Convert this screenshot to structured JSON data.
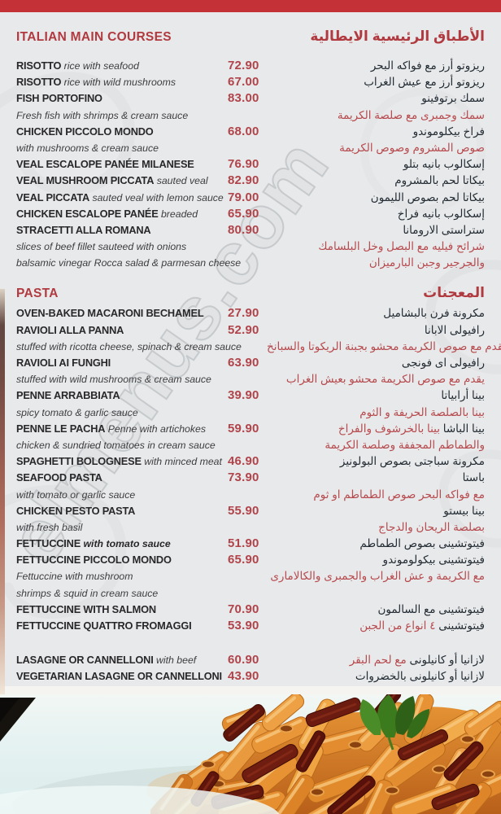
{
  "watermark": "elmenus.com",
  "colors": {
    "banner": "#c43238",
    "heading": "#b03a3f",
    "price": "#b0444a",
    "arabic_red": "#b64a4e"
  },
  "photo": {
    "description": "penne-pasta-with-sundried-tomatoes-photo"
  },
  "sections": [
    {
      "title_en": "ITALIAN MAIN COURSES",
      "title_ar": "الأطباق الرئيسية الايطالية",
      "rows": [
        {
          "t": "item",
          "b": "RISOTTO",
          "i": "rice with seafood",
          "price": "72.90",
          "arb": "ريزوتو أرز مع فواكه البحر"
        },
        {
          "t": "item",
          "b": "RISOTTO",
          "i": "rice with wild mushrooms",
          "price": "67.00",
          "arb": "ريزوتو أرز مع عيش الغراب"
        },
        {
          "t": "item",
          "b": "FISH PORTOFINO",
          "price": "83.00",
          "arb": "سمك برتوفينو"
        },
        {
          "t": "desc",
          "i": "Fresh fish with shrimps & cream sauce",
          "arr": "سمك وجمبرى مع صلصة الكريمة"
        },
        {
          "t": "item",
          "b": "CHICKEN PICCOLO MONDO",
          "price": "68.00",
          "arb": "فراخ بيكلوموندو"
        },
        {
          "t": "desc",
          "i": "with mushrooms & cream sauce",
          "arr": "صوص المشروم وصوص الكريمة"
        },
        {
          "t": "item",
          "b": "VEAL ESCALOPE PANÉE MILANESE",
          "price": "76.90",
          "arb": "إسكالوب بانيه بتلو"
        },
        {
          "t": "item",
          "b": "VEAL MUSHROOM PICCATA",
          "i": "sauted veal",
          "price": "82.90",
          "arb": "بيكاتا لحم بالمشروم"
        },
        {
          "t": "item",
          "b": "VEAL PICCATA",
          "i": "sauted veal with lemon sauce",
          "price": "79.00",
          "arb": "بيكاتا لحم بصوص الليمون"
        },
        {
          "t": "item",
          "b": "CHICKEN ESCALOPE PANÉE",
          "i": "breaded",
          "price": "65.90",
          "arb": "إسكالوب بانيه فراخ"
        },
        {
          "t": "item",
          "b": "STRACETTI ALLA ROMANA",
          "price": "80.90",
          "arb": "ستراستى الارومانا"
        },
        {
          "t": "desc",
          "i": "slices of beef fillet sauteed with onions",
          "arr": "شرائح فيليه مع البصل وخل البلسامك"
        },
        {
          "t": "desc",
          "i": "balsamic vinegar Rocca salad & parmesan cheese",
          "arr": "والجرجير وجبن البارميزان"
        }
      ]
    },
    {
      "title_en": "PASTA",
      "title_ar": "المعجنات",
      "rows": [
        {
          "t": "item",
          "b": "OVEN-BAKED MACARONI BECHAMEL",
          "price": "27.90",
          "arb": "مكرونة فرن بالبشاميل"
        },
        {
          "t": "item",
          "b": "RAVIOLI ALLA PANNA",
          "price": "52.90",
          "arb": "رافيولى الابانا"
        },
        {
          "t": "desc",
          "i": "stuffed with ricotta cheese, spinach & cream sauce",
          "arr": "يقدم مع صوص الكريمة محشو بجبنة الريكوتا والسبانخ"
        },
        {
          "t": "item",
          "b": "RAVIOLI AI FUNGHI",
          "price": "63.90",
          "arb": "رافيولى اى فونجى"
        },
        {
          "t": "desc",
          "i": "stuffed with wild mushrooms & cream sauce",
          "arr": "يقدم مع صوص الكريمة محشو بعيش الغراب"
        },
        {
          "t": "item",
          "b": "PENNE ARRABBIATA",
          "price": "39.90",
          "arb": "بينا أرابياتا"
        },
        {
          "t": "desc",
          "i": "spicy tomato & garlic sauce",
          "arr": "بينا بالصلصة الحريفة و الثوم"
        },
        {
          "t": "item",
          "b": "PENNE LE PACHA",
          "i": "Penne with artichokes",
          "price": "59.90",
          "arb": "بينا الباشا",
          "arr": "بينا بالخرشوف والفراخ"
        },
        {
          "t": "desc",
          "i": "chicken & sundried tomatoes in cream sauce",
          "arr": "والطماطم المجففة وصلصة الكريمة"
        },
        {
          "t": "item",
          "b": "SPAGHETTI BOLOGNESE",
          "i": "with minced meat",
          "price": "46.90",
          "arb": "مكرونة سباجتى بصوص البولونيز"
        },
        {
          "t": "item",
          "b": "SEAFOOD PASTA",
          "price": "73.90",
          "arb": "باستا"
        },
        {
          "t": "desc",
          "i": "with tomato or garlic sauce",
          "arr": "مع فواكه البحر صوص الطماطم او ثوم"
        },
        {
          "t": "item",
          "b": "CHICKEN PESTO PASTA",
          "price": "55.90",
          "arb": "بينا بيستو"
        },
        {
          "t": "desc",
          "i": "with fresh basil",
          "arr": "بصلصة الريحان والدجاج"
        },
        {
          "t": "item",
          "b": "FETTUCCINE",
          "i": "with tomato sauce",
          "ib": true,
          "price": "51.90",
          "arb": "فيتوتشينى بصوص الطماطم"
        },
        {
          "t": "item",
          "b": "FETTUCCINE PICCOLO MONDO",
          "price": "65.90",
          "arb": "فيتوتشينى بيكولوموندو"
        },
        {
          "t": "desc",
          "i": "Fettuccine with mushroom",
          "arr": "مع الكريمة و عش الغراب والجمبرى والكالامارى"
        },
        {
          "t": "desc",
          "i": " shrimps & squid in cream sauce"
        },
        {
          "t": "item",
          "b": "FETTUCCINE WITH SALMON",
          "price": "70.90",
          "arb": "فيتوتشينى مع السالمون"
        },
        {
          "t": "item",
          "b": "FETTUCCINE QUATTRO FROMAGGI",
          "price": "53.90",
          "arb": "فيتوتشينى",
          "arr": "٤ انواع من الجبن"
        },
        {
          "t": "gap"
        },
        {
          "t": "item",
          "b": "LASAGNE OR CANNELLONI",
          "i": "with beef",
          "price": "60.90",
          "arb": "لازانيا أو كانيلونى",
          "arr": "مع لحم البقر"
        },
        {
          "t": "item",
          "b": "VEGETARIAN LASAGNE OR CANNELLONI",
          "price": "43.90",
          "arb": "لازانيا أو كانيلونى بالخضروات"
        }
      ]
    }
  ]
}
